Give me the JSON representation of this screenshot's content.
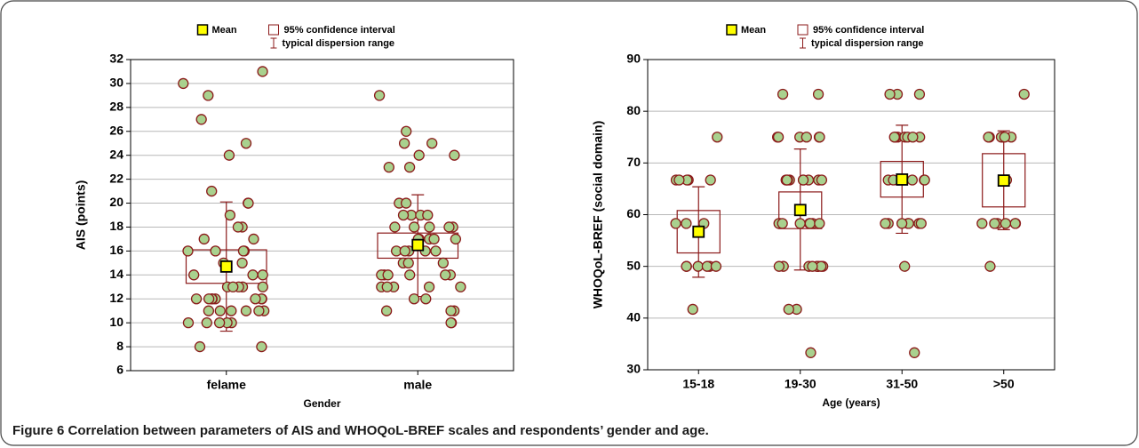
{
  "chart_data": [
    {
      "type": "dot-box",
      "legend": [
        "Mean",
        "95% confidence interval",
        "typical dispersion range"
      ],
      "xlabel": "Gender",
      "ylabel": "AIS (points)",
      "categories": [
        "felame",
        "male"
      ],
      "ylim": [
        6,
        32
      ],
      "yticks": [
        6,
        8,
        10,
        12,
        14,
        16,
        18,
        20,
        22,
        24,
        26,
        28,
        30,
        32
      ],
      "grid": true,
      "means": [
        14.7,
        16.5
      ],
      "ci": [
        [
          13.3,
          16.1
        ],
        [
          15.4,
          17.5
        ]
      ],
      "dispersion": [
        [
          9.3,
          20.1
        ],
        [
          12.2,
          20.7
        ]
      ],
      "points": [
        [
          30,
          31,
          29,
          27,
          25,
          24,
          21,
          20,
          20,
          19,
          18,
          18,
          17,
          17,
          16,
          16,
          16,
          16,
          15,
          15,
          14,
          14,
          14,
          13,
          13,
          13,
          13,
          13,
          12,
          12,
          12,
          12,
          12,
          12,
          12,
          12,
          11,
          11,
          11,
          11,
          11,
          11,
          10,
          10,
          10,
          10,
          10,
          8,
          8
        ],
        [
          29,
          26,
          25,
          25,
          24,
          24,
          23,
          23,
          20,
          20,
          19,
          19,
          19,
          19,
          18,
          18,
          18,
          18,
          18,
          17,
          17,
          17,
          17,
          17,
          16,
          16,
          16,
          16,
          16,
          15,
          15,
          15,
          14,
          14,
          14,
          14,
          14,
          14,
          13,
          13,
          13,
          13,
          13,
          12,
          12,
          11,
          11,
          11,
          10,
          10
        ]
      ]
    },
    {
      "type": "dot-box",
      "legend": [
        "Mean",
        "95% confidence interval",
        "typical dispersion range"
      ],
      "xlabel": "Age (years)",
      "ylabel": "WHOQoL-BREF (social domain)",
      "categories": [
        "15-18",
        "19-30",
        "31-50",
        ">50"
      ],
      "ylim": [
        30,
        90
      ],
      "yticks": [
        30,
        40,
        50,
        60,
        70,
        80,
        90
      ],
      "grid": true,
      "means": [
        56.7,
        60.9,
        66.8,
        66.6
      ],
      "ci": [
        [
          52.6,
          60.8
        ],
        [
          57.3,
          64.4
        ],
        [
          63.4,
          70.3
        ],
        [
          61.5,
          71.8
        ]
      ],
      "dispersion": [
        [
          47.9,
          65.4
        ],
        [
          49.3,
          72.7
        ],
        [
          56.4,
          77.3
        ],
        [
          57.1,
          76.2
        ]
      ],
      "points": [
        [
          75,
          66.7,
          66.7,
          66.7,
          66.7,
          66.7,
          58.3,
          58.3,
          58.3,
          50,
          50,
          50,
          50,
          50,
          50,
          41.7
        ],
        [
          83.3,
          83.3,
          75,
          75,
          75,
          75,
          75,
          75,
          66.7,
          66.7,
          66.7,
          66.7,
          66.7,
          66.7,
          66.7,
          66.7,
          66.7,
          58.3,
          58.3,
          58.3,
          58.3,
          58.3,
          58.3,
          58.3,
          58.3,
          50,
          50,
          50,
          50,
          50,
          50,
          50,
          50,
          50,
          41.7,
          41.7,
          33.3
        ],
        [
          83.3,
          83.3,
          83.3,
          75,
          75,
          75,
          75,
          75,
          75,
          75,
          66.7,
          66.7,
          66.7,
          66.7,
          66.7,
          66.7,
          58.3,
          58.3,
          58.3,
          58.3,
          58.3,
          58.3,
          58.3,
          50,
          33.3
        ],
        [
          83.3,
          75,
          75,
          75,
          75,
          75,
          75,
          66.7,
          66.7,
          58.3,
          58.3,
          58.3,
          58.3,
          58.3,
          58.3,
          50
        ]
      ]
    }
  ],
  "caption": {
    "label": "Figure 6",
    "text": "Correlation between parameters of AIS and WHOQoL-BREF scales and respondents’ gender and age."
  }
}
